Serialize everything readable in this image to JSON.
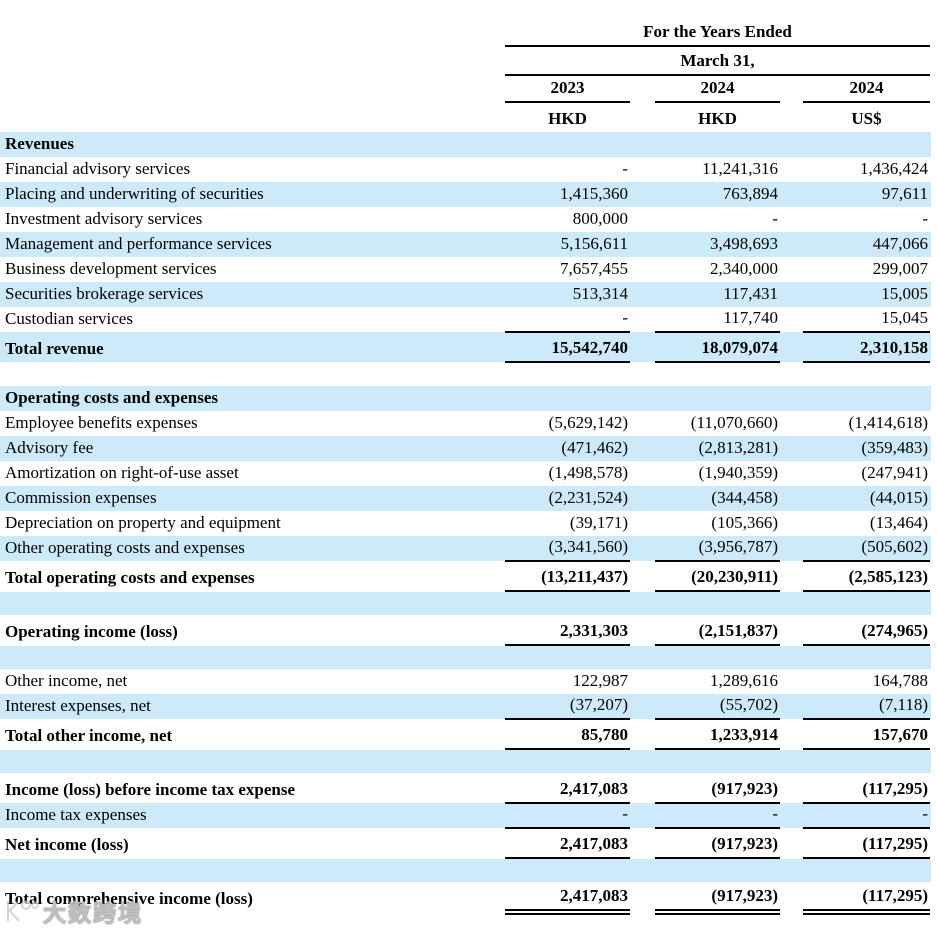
{
  "colors": {
    "band_blue": "#cdeafb",
    "rule": "#000000",
    "text": "#000000"
  },
  "header": {
    "period_title": "For the Years Ended",
    "period_subtitle": "March 31,",
    "columns": [
      {
        "year": "2023",
        "currency": "HKD"
      },
      {
        "year": "2024",
        "currency": "HKD"
      },
      {
        "year": "2024",
        "currency": "US$"
      }
    ]
  },
  "watermark": {
    "text": "大数跨境"
  },
  "rows": [
    {
      "type": "section",
      "bg": "blue",
      "bold": true,
      "label": "Revenues",
      "values": [
        "",
        "",
        ""
      ]
    },
    {
      "type": "item",
      "bg": "white",
      "label": "Financial advisory services",
      "values": [
        "-",
        "11,241,316",
        "1,436,424"
      ]
    },
    {
      "type": "item",
      "bg": "blue",
      "label": "Placing and underwriting of securities",
      "values": [
        "1,415,360",
        "763,894",
        "97,611"
      ]
    },
    {
      "type": "item",
      "bg": "white",
      "label": "Investment advisory services",
      "values": [
        "800,000",
        "-",
        "-"
      ]
    },
    {
      "type": "item",
      "bg": "blue",
      "label": "Management and performance services",
      "values": [
        "5,156,611",
        "3,498,693",
        "447,066"
      ]
    },
    {
      "type": "item",
      "bg": "white",
      "label": "Business development services",
      "values": [
        "7,657,455",
        "2,340,000",
        "299,007"
      ]
    },
    {
      "type": "item",
      "bg": "blue",
      "label": "Securities brokerage services",
      "values": [
        "513,314",
        "117,431",
        "15,005"
      ]
    },
    {
      "type": "item",
      "bg": "white",
      "label": "Custodian services",
      "values": [
        "-",
        "117,740",
        "15,045"
      ],
      "underline": "single"
    },
    {
      "type": "total",
      "bg": "blue",
      "bold": true,
      "label": "Total revenue",
      "values": [
        "15,542,740",
        "18,079,074",
        "2,310,158"
      ],
      "underline": "single"
    },
    {
      "type": "gap",
      "bg": "white"
    },
    {
      "type": "section",
      "bg": "blue",
      "bold": true,
      "label": "Operating costs and expenses",
      "values": [
        "",
        "",
        ""
      ]
    },
    {
      "type": "item",
      "bg": "white",
      "label": "Employee benefits expenses",
      "values": [
        "(5,629,142)",
        "(11,070,660)",
        "(1,414,618)"
      ]
    },
    {
      "type": "item",
      "bg": "blue",
      "label": "Advisory fee",
      "values": [
        "(471,462)",
        "(2,813,281)",
        "(359,483)"
      ]
    },
    {
      "type": "item",
      "bg": "white",
      "label": "Amortization on right-of-use asset",
      "values": [
        "(1,498,578)",
        "(1,940,359)",
        "(247,941)"
      ]
    },
    {
      "type": "item",
      "bg": "blue",
      "label": "Commission expenses",
      "values": [
        "(2,231,524)",
        "(344,458)",
        "(44,015)"
      ]
    },
    {
      "type": "item",
      "bg": "white",
      "label": "Depreciation on property and equipment",
      "values": [
        "(39,171)",
        "(105,366)",
        "(13,464)"
      ]
    },
    {
      "type": "item",
      "bg": "blue",
      "label": "Other operating costs and expenses",
      "values": [
        "(3,341,560)",
        "(3,956,787)",
        "(505,602)"
      ],
      "underline": "single"
    },
    {
      "type": "total",
      "bg": "white",
      "bold": true,
      "label": "Total operating costs and expenses",
      "values": [
        "(13,211,437)",
        "(20,230,911)",
        "(2,585,123)"
      ],
      "underline": "single"
    },
    {
      "type": "gap",
      "bg": "blue"
    },
    {
      "type": "total",
      "bg": "white",
      "bold": true,
      "label": "Operating income (loss)",
      "values": [
        "2,331,303",
        "(2,151,837)",
        "(274,965)"
      ],
      "underline": "single"
    },
    {
      "type": "gap",
      "bg": "blue"
    },
    {
      "type": "item",
      "bg": "white",
      "label": "Other income, net",
      "values": [
        "122,987",
        "1,289,616",
        "164,788"
      ]
    },
    {
      "type": "item",
      "bg": "blue",
      "label": "Interest expenses, net",
      "values": [
        "(37,207)",
        "(55,702)",
        "(7,118)"
      ],
      "underline": "single"
    },
    {
      "type": "total",
      "bg": "white",
      "bold": true,
      "label": "Total other income, net",
      "values": [
        "85,780",
        "1,233,914",
        "157,670"
      ],
      "underline": "single"
    },
    {
      "type": "gap",
      "bg": "blue"
    },
    {
      "type": "total",
      "bg": "white",
      "bold": true,
      "label": "Income (loss) before income tax expense",
      "values": [
        "2,417,083",
        "(917,923)",
        "(117,295)"
      ],
      "underline": "single"
    },
    {
      "type": "item",
      "bg": "blue",
      "label": "Income tax expenses",
      "values": [
        "-",
        "-",
        "-"
      ],
      "underline": "single"
    },
    {
      "type": "total",
      "bg": "white",
      "bold": true,
      "label": "Net income (loss)",
      "values": [
        "2,417,083",
        "(917,923)",
        "(117,295)"
      ],
      "underline": "single"
    },
    {
      "type": "gap",
      "bg": "blue"
    },
    {
      "type": "total",
      "bg": "white",
      "bold": true,
      "label": "Total comprehensive income (loss)",
      "values": [
        "2,417,083",
        "(917,923)",
        "(117,295)"
      ],
      "underline": "double"
    }
  ]
}
